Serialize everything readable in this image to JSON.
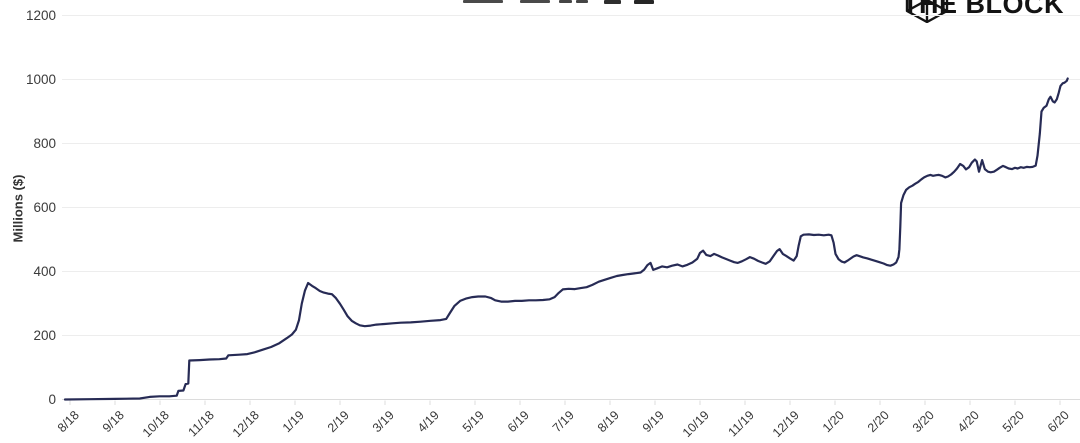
{
  "logo": {
    "text": "THE BLOCK",
    "icon": "block-cube-icon"
  },
  "colors": {
    "line": "#272b55",
    "grid": "#ededed",
    "zero_line": "#dcdcdc",
    "tick": "#dedede",
    "axis_text": "#3b3b3b",
    "logo": "#141414"
  },
  "chart_data": {
    "type": "line",
    "title": "",
    "ylabel": "Millions ($)",
    "ylim": [
      0,
      1200
    ],
    "y_ticks": [
      0,
      200,
      400,
      600,
      800,
      1000,
      1200
    ],
    "grid": "horizontal",
    "legend": "none",
    "x_tick_labels": [
      "8/18",
      "9/18",
      "10/18",
      "11/18",
      "12/18",
      "1/19",
      "2/19",
      "3/19",
      "4/19",
      "5/19",
      "6/19",
      "7/19",
      "8/19",
      "9/19",
      "10/19",
      "11/19",
      "12/19",
      "1/20",
      "2/20",
      "3/20",
      "4/20",
      "5/20",
      "6/20"
    ],
    "x_unit": "months from first tick (8/18)",
    "series": [
      {
        "name": "value-millions-usd",
        "points": [
          [
            -0.11,
            0
          ],
          [
            0.44,
            1
          ],
          [
            1.0,
            2
          ],
          [
            1.55,
            3
          ],
          [
            1.77,
            8
          ],
          [
            1.99,
            10
          ],
          [
            2.21,
            10
          ],
          [
            2.37,
            12
          ],
          [
            2.41,
            27
          ],
          [
            2.52,
            28
          ],
          [
            2.57,
            48
          ],
          [
            2.63,
            50
          ],
          [
            2.65,
            122
          ],
          [
            2.88,
            123
          ],
          [
            3.1,
            125
          ],
          [
            3.32,
            126
          ],
          [
            3.47,
            128
          ],
          [
            3.52,
            138
          ],
          [
            3.76,
            140
          ],
          [
            3.94,
            142
          ],
          [
            4.12,
            148
          ],
          [
            4.29,
            156
          ],
          [
            4.47,
            164
          ],
          [
            4.65,
            176
          ],
          [
            4.82,
            192
          ],
          [
            4.93,
            203
          ],
          [
            5.02,
            218
          ],
          [
            5.09,
            248
          ],
          [
            5.15,
            300
          ],
          [
            5.22,
            340
          ],
          [
            5.29,
            364
          ],
          [
            5.38,
            355
          ],
          [
            5.46,
            348
          ],
          [
            5.55,
            339
          ],
          [
            5.64,
            334
          ],
          [
            5.73,
            331
          ],
          [
            5.82,
            329
          ],
          [
            5.91,
            317
          ],
          [
            6.0,
            299
          ],
          [
            6.08,
            281
          ],
          [
            6.17,
            260
          ],
          [
            6.26,
            246
          ],
          [
            6.35,
            238
          ],
          [
            6.44,
            232
          ],
          [
            6.55,
            229
          ],
          [
            6.68,
            231
          ],
          [
            6.81,
            234
          ],
          [
            6.99,
            236
          ],
          [
            7.17,
            238
          ],
          [
            7.35,
            240
          ],
          [
            7.57,
            241
          ],
          [
            7.79,
            243
          ],
          [
            8.01,
            246
          ],
          [
            8.23,
            248
          ],
          [
            8.36,
            252
          ],
          [
            8.45,
            272
          ],
          [
            8.54,
            292
          ],
          [
            8.67,
            308
          ],
          [
            8.81,
            316
          ],
          [
            8.94,
            320
          ],
          [
            9.07,
            322
          ],
          [
            9.23,
            322
          ],
          [
            9.36,
            317
          ],
          [
            9.45,
            310
          ],
          [
            9.58,
            306
          ],
          [
            9.73,
            306
          ],
          [
            9.89,
            308
          ],
          [
            10.04,
            308
          ],
          [
            10.2,
            310
          ],
          [
            10.35,
            310
          ],
          [
            10.51,
            311
          ],
          [
            10.66,
            313
          ],
          [
            10.77,
            320
          ],
          [
            10.86,
            333
          ],
          [
            10.95,
            344
          ],
          [
            11.08,
            346
          ],
          [
            11.22,
            345
          ],
          [
            11.35,
            348
          ],
          [
            11.48,
            351
          ],
          [
            11.61,
            358
          ],
          [
            11.75,
            368
          ],
          [
            11.88,
            374
          ],
          [
            12.01,
            380
          ],
          [
            12.15,
            386
          ],
          [
            12.28,
            389
          ],
          [
            12.41,
            392
          ],
          [
            12.54,
            394
          ],
          [
            12.68,
            397
          ],
          [
            12.76,
            406
          ],
          [
            12.83,
            420
          ],
          [
            12.9,
            427
          ],
          [
            12.96,
            405
          ],
          [
            13.05,
            410
          ],
          [
            13.16,
            416
          ],
          [
            13.27,
            413
          ],
          [
            13.38,
            418
          ],
          [
            13.5,
            422
          ],
          [
            13.61,
            416
          ],
          [
            13.72,
            421
          ],
          [
            13.83,
            428
          ],
          [
            13.94,
            440
          ],
          [
            14.0,
            458
          ],
          [
            14.07,
            465
          ],
          [
            14.14,
            452
          ],
          [
            14.23,
            448
          ],
          [
            14.31,
            455
          ],
          [
            14.4,
            450
          ],
          [
            14.49,
            444
          ],
          [
            14.58,
            439
          ],
          [
            14.67,
            434
          ],
          [
            14.76,
            429
          ],
          [
            14.84,
            427
          ],
          [
            14.93,
            432
          ],
          [
            15.02,
            438
          ],
          [
            15.11,
            445
          ],
          [
            15.2,
            440
          ],
          [
            15.29,
            433
          ],
          [
            15.38,
            428
          ],
          [
            15.46,
            424
          ],
          [
            15.55,
            432
          ],
          [
            15.64,
            450
          ],
          [
            15.71,
            464
          ],
          [
            15.77,
            470
          ],
          [
            15.84,
            455
          ],
          [
            15.91,
            449
          ],
          [
            16.0,
            441
          ],
          [
            16.08,
            434
          ],
          [
            16.15,
            448
          ],
          [
            16.19,
            480
          ],
          [
            16.24,
            510
          ],
          [
            16.3,
            515
          ],
          [
            16.42,
            516
          ],
          [
            16.53,
            514
          ],
          [
            16.64,
            515
          ],
          [
            16.75,
            513
          ],
          [
            16.86,
            515
          ],
          [
            16.92,
            513
          ],
          [
            16.97,
            490
          ],
          [
            17.01,
            455
          ],
          [
            17.08,
            438
          ],
          [
            17.15,
            431
          ],
          [
            17.21,
            428
          ],
          [
            17.28,
            434
          ],
          [
            17.35,
            441
          ],
          [
            17.41,
            447
          ],
          [
            17.48,
            451
          ],
          [
            17.54,
            448
          ],
          [
            17.63,
            444
          ],
          [
            17.72,
            441
          ],
          [
            17.81,
            437
          ],
          [
            17.9,
            433
          ],
          [
            17.99,
            429
          ],
          [
            18.08,
            425
          ],
          [
            18.16,
            420
          ],
          [
            18.23,
            418
          ],
          [
            18.3,
            422
          ],
          [
            18.36,
            428
          ],
          [
            18.41,
            445
          ],
          [
            18.43,
            470
          ],
          [
            18.45,
            540
          ],
          [
            18.47,
            614
          ],
          [
            18.52,
            638
          ],
          [
            18.58,
            655
          ],
          [
            18.65,
            663
          ],
          [
            18.72,
            668
          ],
          [
            18.78,
            674
          ],
          [
            18.85,
            680
          ],
          [
            18.92,
            688
          ],
          [
            18.98,
            694
          ],
          [
            19.05,
            699
          ],
          [
            19.12,
            702
          ],
          [
            19.18,
            699
          ],
          [
            19.25,
            701
          ],
          [
            19.31,
            702
          ],
          [
            19.38,
            699
          ],
          [
            19.45,
            694
          ],
          [
            19.51,
            697
          ],
          [
            19.58,
            703
          ],
          [
            19.65,
            712
          ],
          [
            19.71,
            722
          ],
          [
            19.78,
            736
          ],
          [
            19.85,
            730
          ],
          [
            19.91,
            719
          ],
          [
            19.98,
            726
          ],
          [
            20.04,
            740
          ],
          [
            20.11,
            750
          ],
          [
            20.15,
            744
          ],
          [
            20.2,
            712
          ],
          [
            20.27,
            748
          ],
          [
            20.33,
            720
          ],
          [
            20.4,
            712
          ],
          [
            20.46,
            710
          ],
          [
            20.53,
            712
          ],
          [
            20.6,
            718
          ],
          [
            20.66,
            724
          ],
          [
            20.73,
            730
          ],
          [
            20.8,
            726
          ],
          [
            20.86,
            722
          ],
          [
            20.93,
            720
          ],
          [
            21.0,
            724
          ],
          [
            21.06,
            722
          ],
          [
            21.13,
            726
          ],
          [
            21.19,
            724
          ],
          [
            21.26,
            727
          ],
          [
            21.33,
            726
          ],
          [
            21.39,
            727
          ],
          [
            21.46,
            731
          ],
          [
            21.5,
            762
          ],
          [
            21.55,
            830
          ],
          [
            21.59,
            900
          ],
          [
            21.64,
            912
          ],
          [
            21.7,
            918
          ],
          [
            21.75,
            938
          ],
          [
            21.79,
            946
          ],
          [
            21.84,
            932
          ],
          [
            21.88,
            928
          ],
          [
            21.93,
            938
          ],
          [
            21.97,
            958
          ],
          [
            22.01,
            980
          ],
          [
            22.06,
            988
          ],
          [
            22.1,
            990
          ],
          [
            22.15,
            996
          ],
          [
            22.17,
            1003
          ]
        ]
      }
    ]
  }
}
